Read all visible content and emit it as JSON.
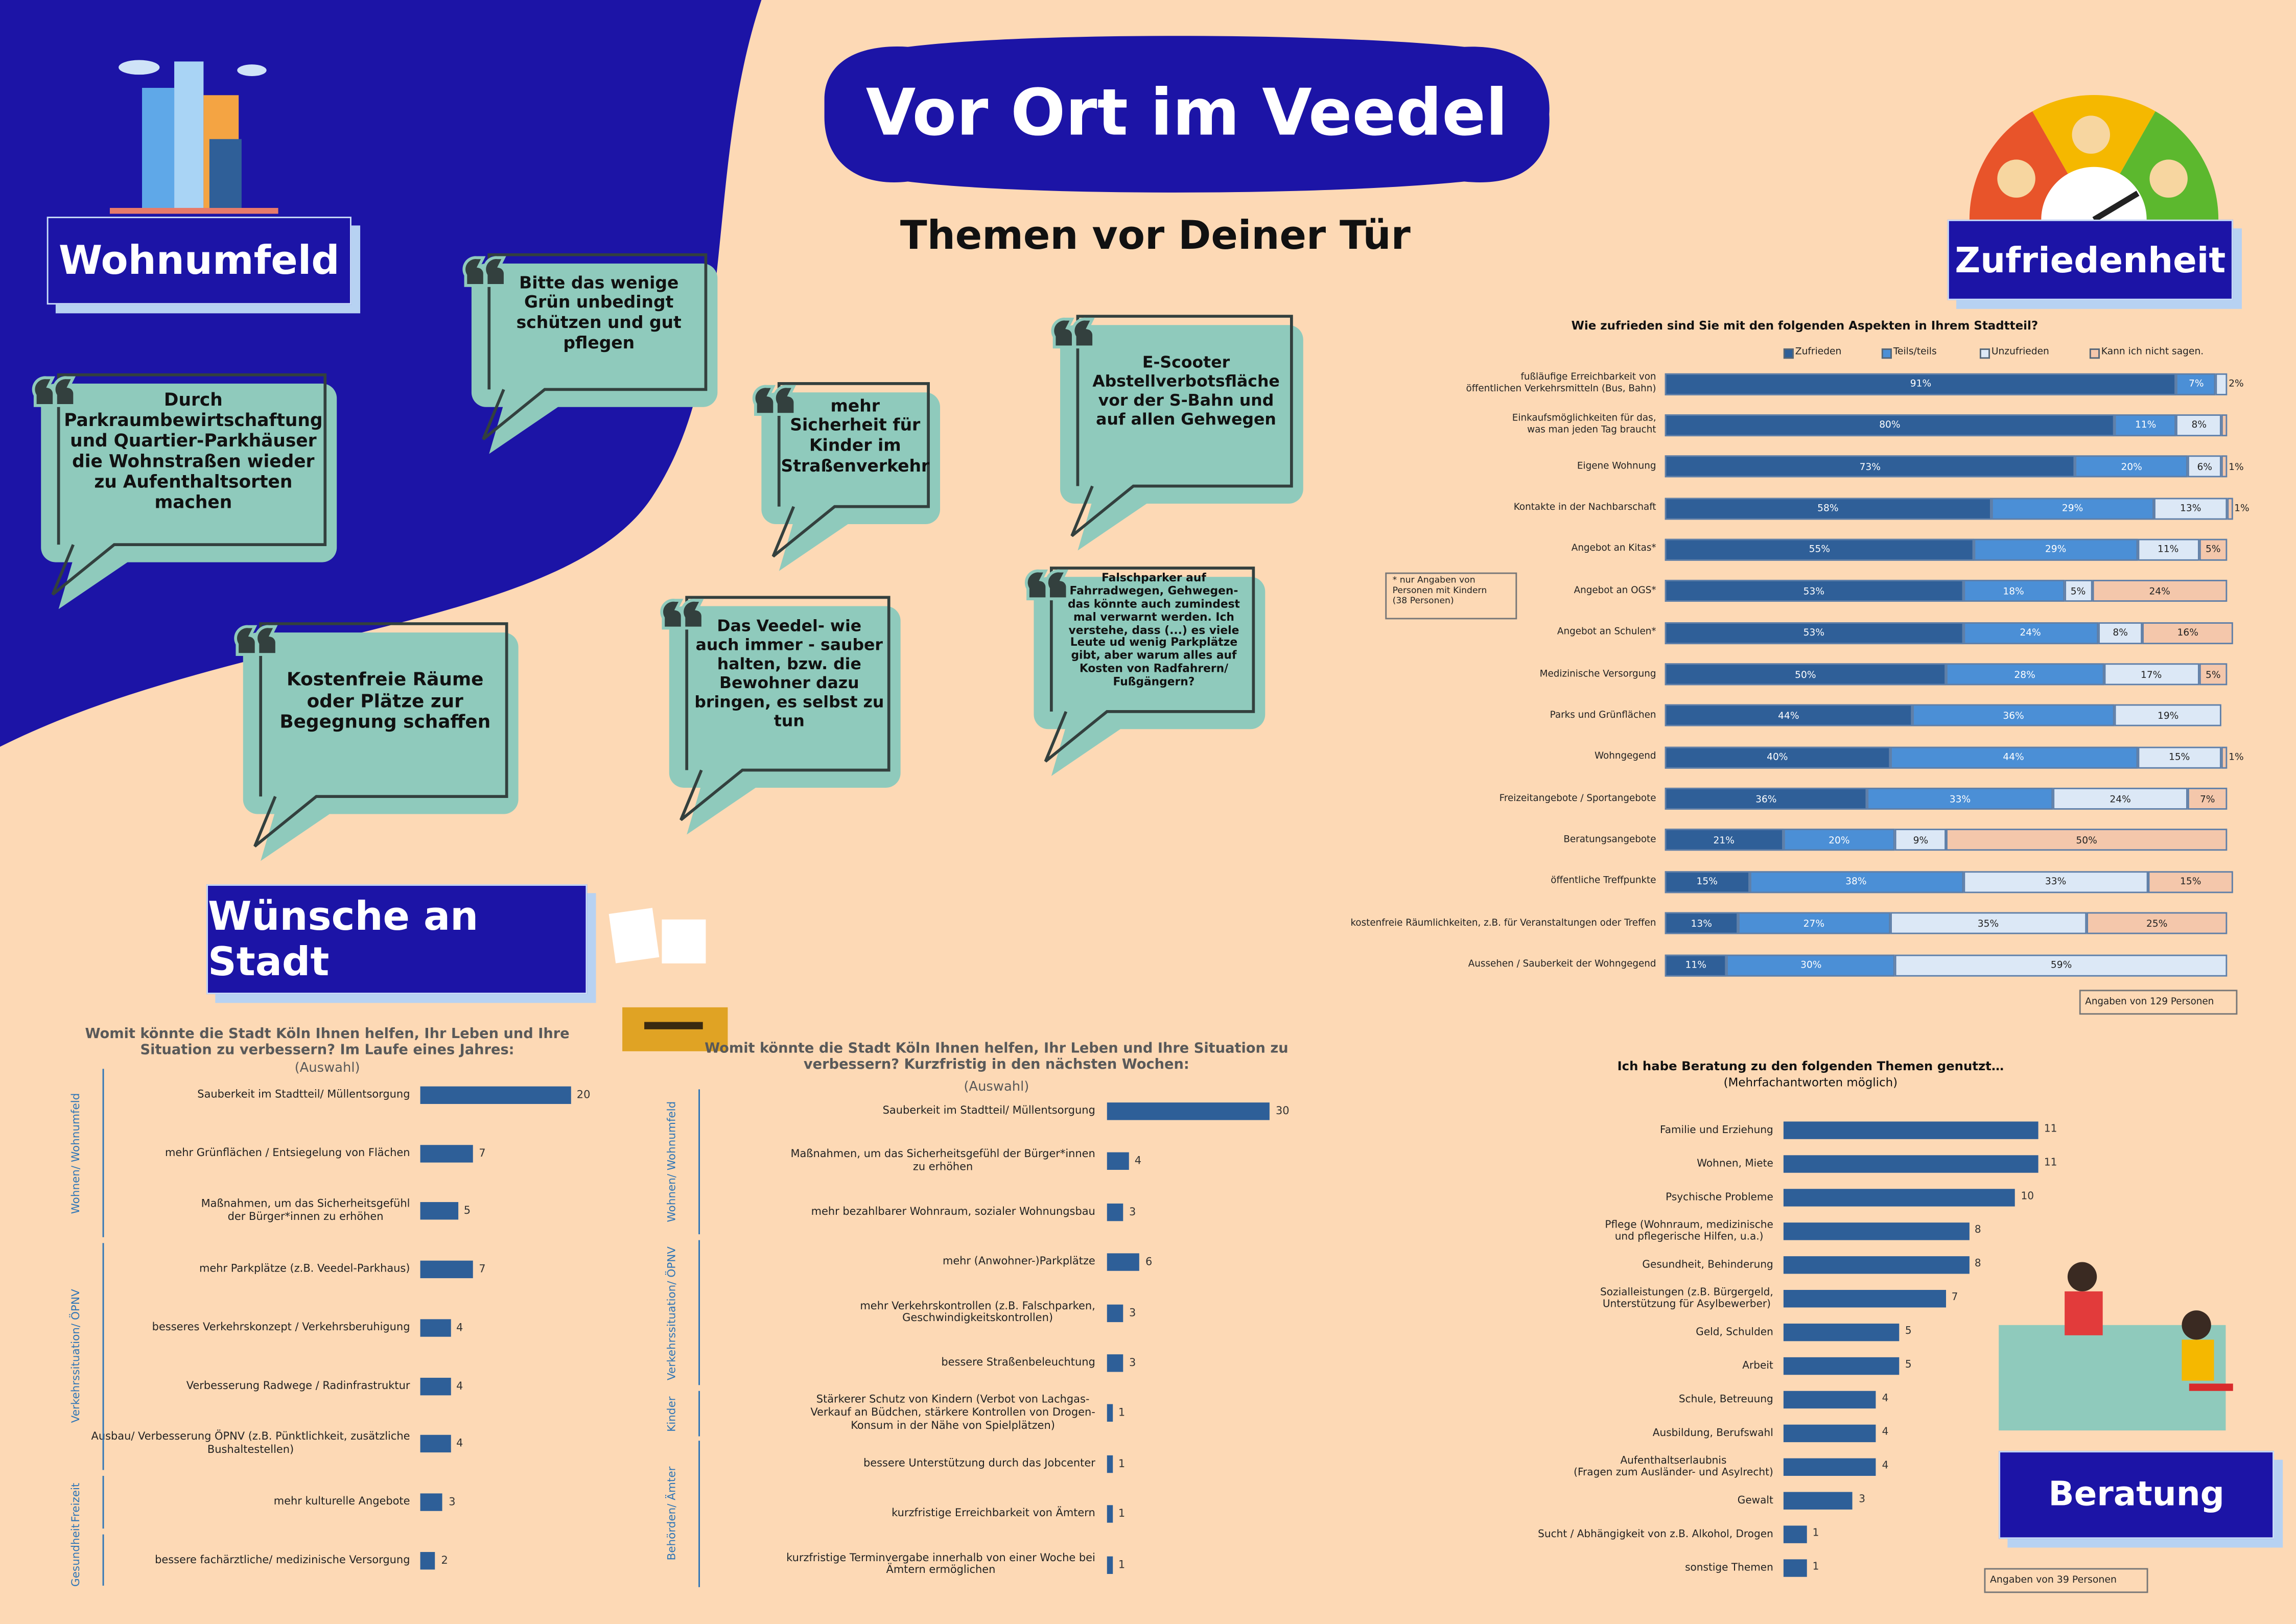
{
  "header": {
    "title": "Vor Ort im Veedel",
    "subtitle": "Themen vor Deiner Tür"
  },
  "sections": [
    "Wohnumfeld",
    "Zufriedenheit",
    "Wünsche an Stadt",
    "Beratung"
  ],
  "quotes": [
    "Durch Parkraumbewirtschaftung und Quartier-Parkhäuser die Wohnstraßen wieder zu Aufenthaltsorten machen",
    "Bitte das wenige Grün unbedingt schützen und gut pflegen",
    "mehr Sicherheit für Kinder im Straßenverkehr",
    "E-Scooter Abstellverbotsfläche vor der S-Bahn und auf allen Gehwegen",
    "Kostenfreie Räume oder Plätze zur Begegnung schaffen",
    "Das Veedel- wie auch immer - sauber halten, bzw. die Bewohner dazu bringen, es selbst zu tun",
    "Falschparker auf Fahrradwegen, Gehwegen- das könnte auch zumindest mal verwarnt werden. Ich verstehe, dass (...) es viele Leute ud wenig Parkplätze gibt, aber warum alles auf Kosten von Radfahrern/ Fußgängern?"
  ],
  "chart_data": [
    {
      "type": "bar",
      "stacked": true,
      "horizontal": true,
      "title": "Wie zufrieden sind Sie mit den folgenden Aspekten in Ihrem Stadtteil?",
      "categories": [
        "fußläufige Erreichbarkeit von\nöffentlichen Verkehrsmitteln (Bus, Bahn)",
        "Einkaufsmöglichkeiten für das,\nwas man jeden Tag braucht",
        "Eigene Wohnung",
        "Kontakte in der Nachbarschaft",
        "Angebot an Kitas*",
        "Angebot an OGS*",
        "Angebot an Schulen*",
        "Medizinische Versorgung",
        "Parks und Grünflächen",
        "Wohngegend",
        "Freizeitangebote / Sportangebote",
        "Beratungsangebote",
        "öffentliche Treffpunkte",
        "kostenfreie Räumlichkeiten, z.B. für Veranstaltungen oder Treffen",
        "Aussehen / Sauberkeit der Wohngegend"
      ],
      "xlim": [
        0,
        100
      ],
      "series": [
        {
          "name": "Zufrieden",
          "color": "#2f5f98",
          "values": [
            91,
            80,
            73,
            58,
            55,
            53,
            53,
            50,
            44,
            40,
            36,
            21,
            15,
            13,
            11
          ],
          "value_labels": [
            "91%",
            "80%",
            "73%",
            "58%",
            "55%",
            "53%",
            "53%",
            "50%",
            "44%",
            "40%",
            "36%",
            "21%",
            "15%",
            "13%",
            "11%"
          ]
        },
        {
          "name": "Teils/teils",
          "color": "#4b8fd6",
          "values": [
            7,
            11,
            20,
            29,
            29,
            18,
            24,
            28,
            36,
            44,
            33,
            20,
            38,
            27,
            30
          ],
          "value_labels": [
            "7%",
            "11%",
            "20%",
            "29%",
            "29%",
            "18%",
            "24%",
            "28%",
            "36%",
            "44%",
            "33%",
            "20%",
            "38%",
            "27%",
            "30%"
          ]
        },
        {
          "name": "Unzufrieden",
          "color": "#dce8f6",
          "values": [
            2,
            8,
            6,
            13,
            11,
            5,
            8,
            17,
            19,
            15,
            24,
            9,
            33,
            35,
            59
          ],
          "value_labels": [
            "2%",
            "8%",
            "6%",
            "13%",
            "11%",
            "5%",
            "8%",
            "17%",
            "19%",
            "15%",
            "24%",
            "9%",
            "33%",
            "35%",
            "59%"
          ]
        },
        {
          "name": "Kann ich nicht sagen.",
          "color": "#f4c7ab",
          "values": [
            null,
            1,
            1,
            1,
            5,
            24,
            16,
            5,
            null,
            1,
            7,
            50,
            15,
            25,
            null
          ],
          "value_labels": [
            null,
            null,
            "1%",
            "1%",
            "5%",
            "24%",
            "16%",
            "5%",
            null,
            "1%",
            "7%",
            "50%",
            "15%",
            "25%",
            null
          ]
        }
      ],
      "annotations": [
        "* nur Angaben von\nPersonen mit Kindern\n(38 Personen)",
        "Angaben von 129 Personen"
      ]
    },
    {
      "type": "bar",
      "horizontal": true,
      "title": "Womit könnte die Stadt Köln Ihnen helfen, Ihr Leben und Ihre Situation zu verbessern? Im Laufe eines Jahres:",
      "subtitle": "(Auswahl)",
      "color": "#2e5f98",
      "xlim": [
        0,
        28
      ],
      "groups": [
        {
          "name": "Wohnen/ Wohnumfeld",
          "categories": [
            "Sauberkeit im Stadtteil/ Müllentsorgung",
            "mehr Grünflächen / Entsiegelung von Flächen",
            "Maßnahmen, um das Sicherheitsgefühl\nder Bürger*innen zu erhöhen"
          ],
          "values": [
            20,
            7,
            5
          ]
        },
        {
          "name": "Verkehrssituation/ ÖPNV",
          "categories": [
            "mehr Parkplätze (z.B. Veedel-Parkhaus)",
            "besseres Verkehrskonzept / Verkehrsberuhigung",
            "Verbesserung Radwege / Radinfrastruktur",
            "Ausbau/ Verbesserung ÖPNV (z.B. Pünktlichkeit, zusätzliche\nBushaltestellen)"
          ],
          "values": [
            7,
            4,
            4,
            4
          ]
        },
        {
          "name": "Freizeit",
          "categories": [
            "mehr kulturelle Angebote"
          ],
          "values": [
            3
          ]
        },
        {
          "name": "Gesundheit",
          "categories": [
            "bessere fachärztliche/ medizinische Versorgung"
          ],
          "values": [
            2
          ]
        }
      ]
    },
    {
      "type": "bar",
      "horizontal": true,
      "title": "Womit könnte die Stadt Köln Ihnen helfen, Ihr Leben und Ihre Situation zu verbessern? Kurzfristig in den nächsten Wochen:",
      "subtitle": "(Auswahl)",
      "color": "#2e5f98",
      "xlim": [
        0,
        41
      ],
      "groups": [
        {
          "name": "Wohnen/ Wohnumfeld",
          "categories": [
            "Sauberkeit im Stadtteil/ Müllentsorgung",
            "Maßnahmen, um das Sicherheitsgefühl der Bürger*innen\nzu erhöhen",
            "mehr bezahlbarer Wohnraum, sozialer Wohnungsbau"
          ],
          "values": [
            30,
            4,
            3
          ]
        },
        {
          "name": "Verkehrssituation/ ÖPNV",
          "categories": [
            "mehr (Anwohner-)Parkplätze",
            "mehr Verkehrskontrollen (z.B. Falschparken,\nGeschwindigkeitskontrollen)",
            "bessere Straßenbeleuchtung"
          ],
          "values": [
            6,
            3,
            3
          ]
        },
        {
          "name": "Kinder",
          "categories": [
            "Stärkerer Schutz von Kindern (Verbot von Lachgas-\nVerkauf an Büdchen, stärkere Kontrollen von Drogen-\nKonsum in der Nähe von Spielplätzen)"
          ],
          "values": [
            1
          ]
        },
        {
          "name": "Behörden/ Ämter",
          "categories": [
            "bessere Unterstützung durch das Jobcenter",
            "kurzfristige Erreichbarkeit von Ämtern",
            "kurzfristige Terminvergabe innerhalb von einer Woche bei\nÄmtern ermöglichen"
          ],
          "values": [
            1,
            1,
            1
          ]
        }
      ]
    },
    {
      "type": "bar",
      "horizontal": true,
      "title": "Ich habe Beratung zu den folgenden Themen genutzt…",
      "subtitle": "(Mehrfachantworten möglich)",
      "color": "#2e5f98",
      "xlim": [
        0,
        16
      ],
      "categories": [
        "Familie und Erziehung",
        "Wohnen, Miete",
        "Psychische Probleme",
        "Pflege (Wohnraum, medizinische\nund pflegerische Hilfen, u.a.)",
        "Gesundheit, Behinderung",
        "Sozialleistungen (z.B. Bürgergeld,\nUnterstützung für Asylbewerber)",
        "Geld, Schulden",
        "Arbeit",
        "Schule, Betreuung",
        "Ausbildung, Berufswahl",
        "Aufenthaltserlaubnis\n(Fragen zum Ausländer- und Asylrecht)",
        "Gewalt",
        "Sucht / Abhängigkeit von z.B. Alkohol, Drogen",
        "sonstige Themen"
      ],
      "values": [
        11,
        11,
        10,
        8,
        8,
        7,
        5,
        5,
        4,
        4,
        4,
        3,
        1,
        1
      ],
      "annotations": [
        "Angaben von 39 Personen"
      ]
    }
  ]
}
